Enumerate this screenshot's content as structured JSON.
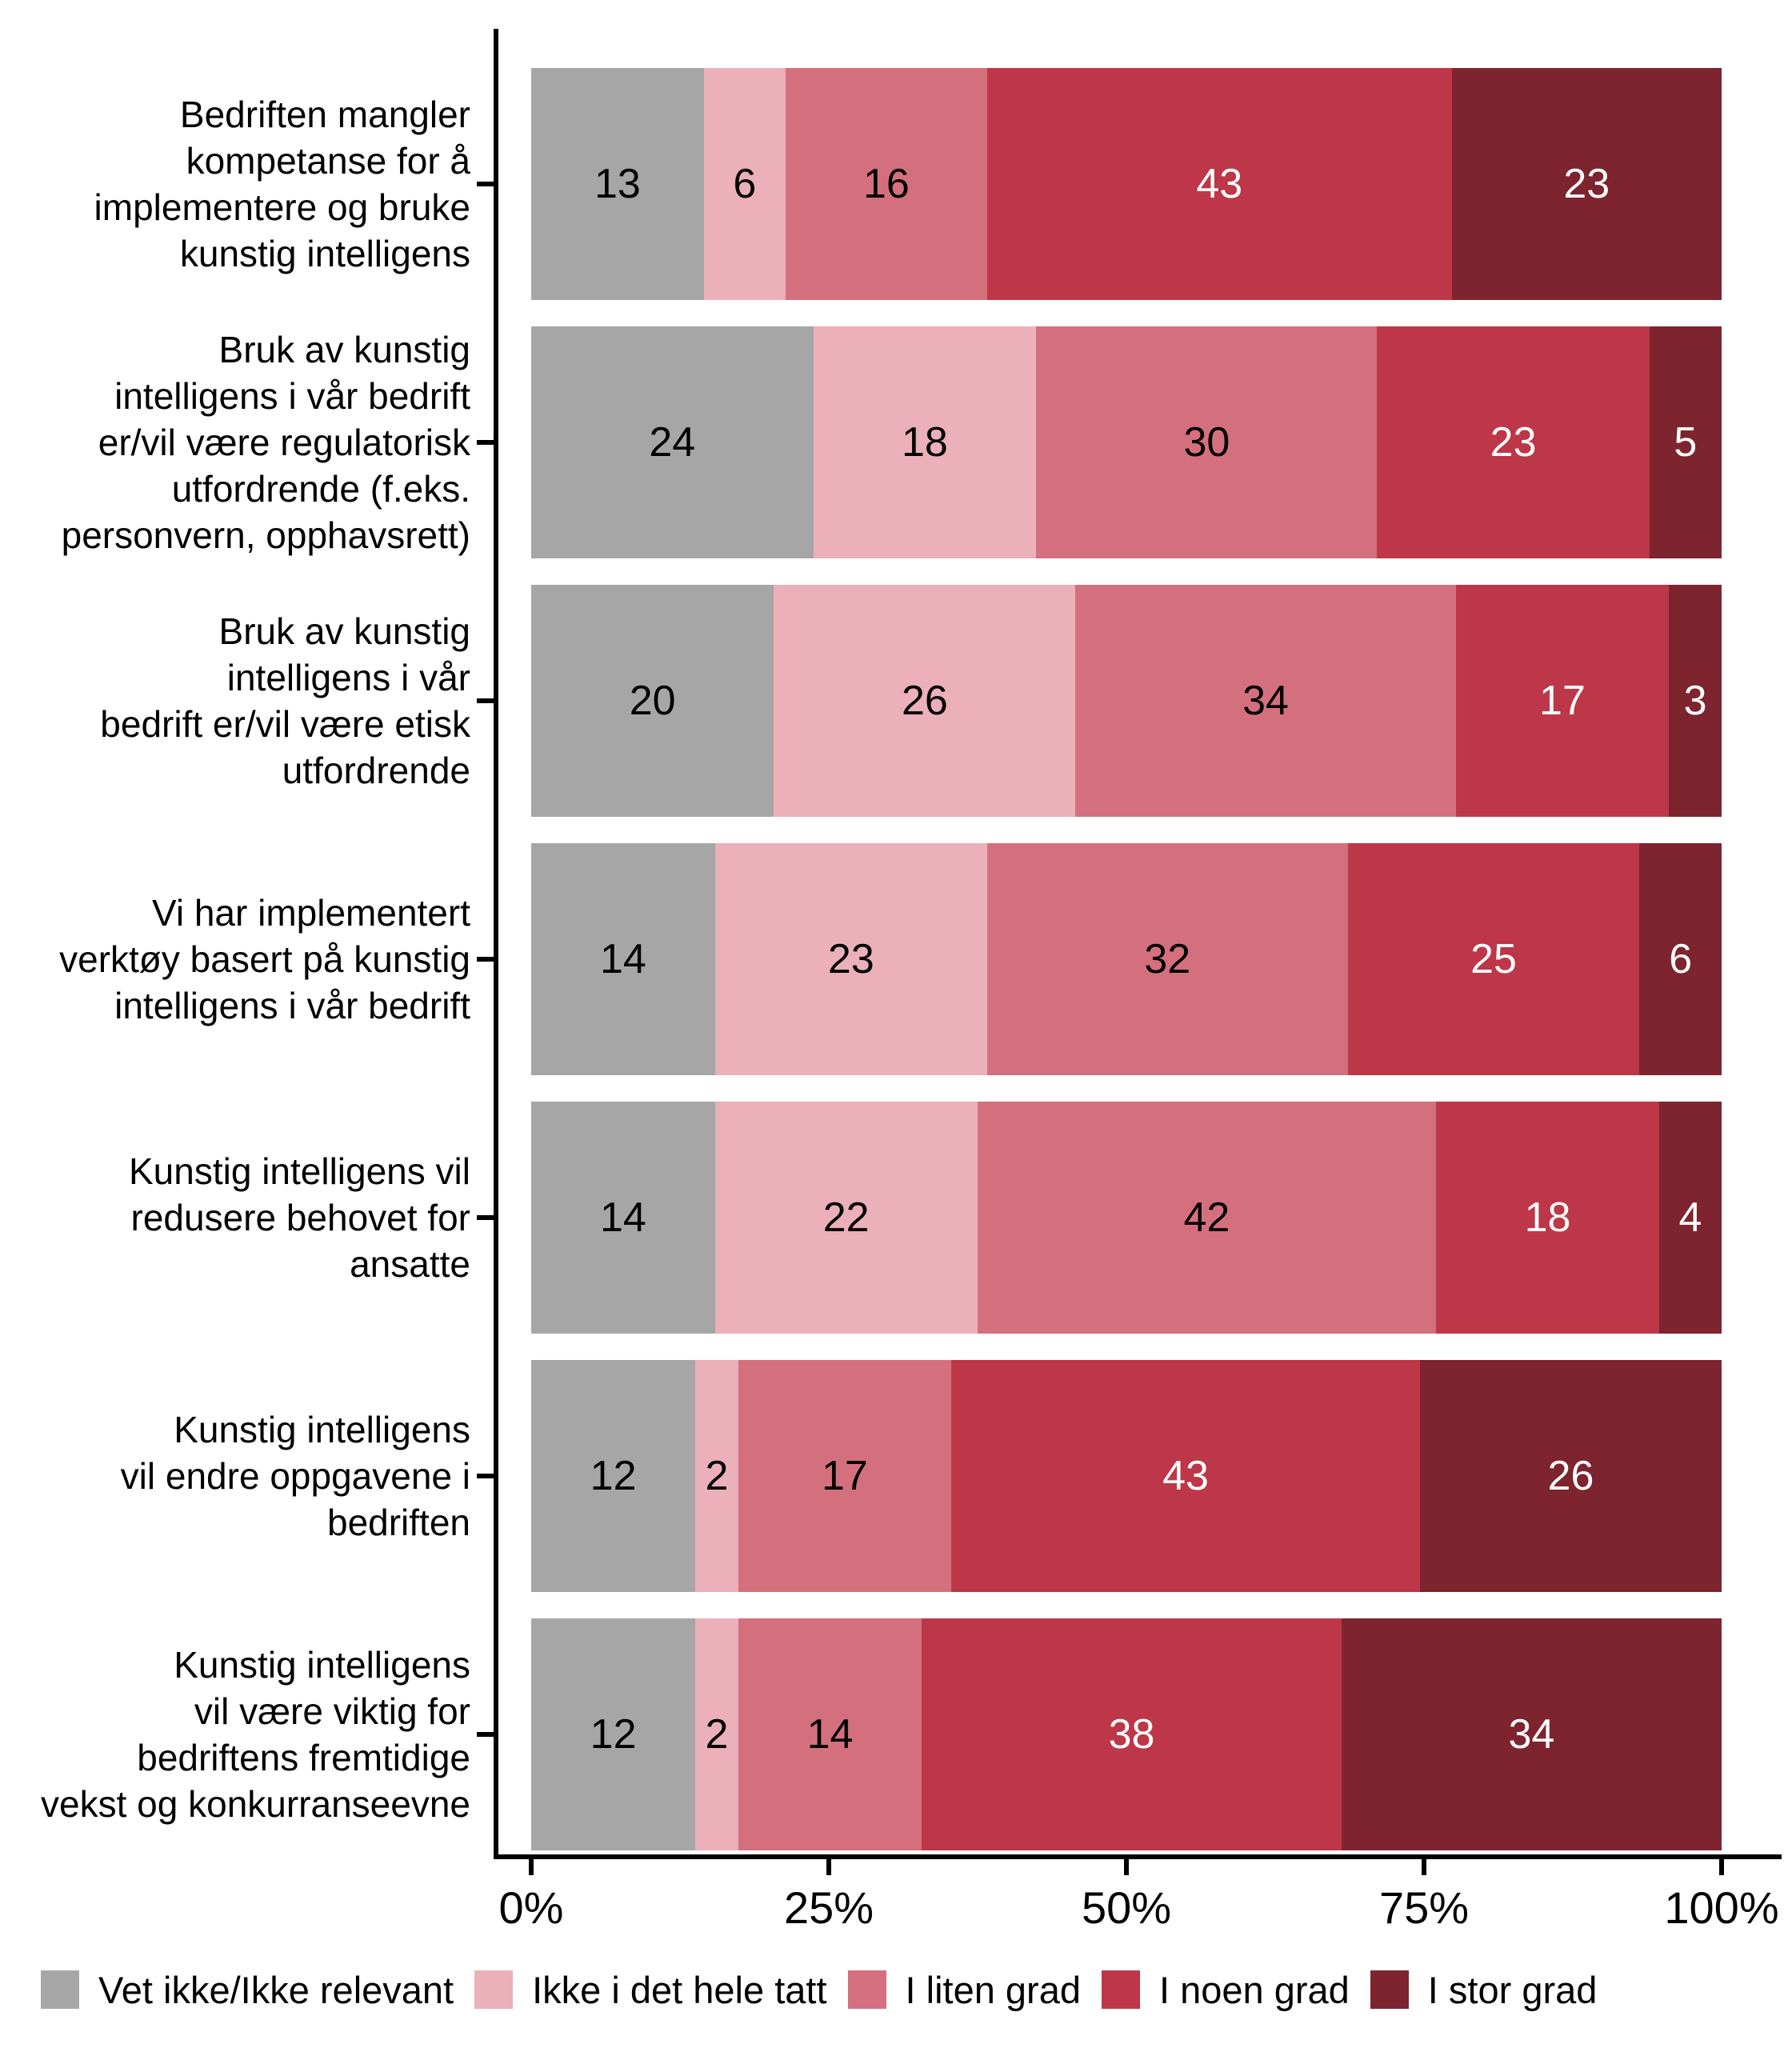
{
  "chart_data": {
    "type": "bar",
    "orientation": "horizontal",
    "stacked": true,
    "title": "",
    "xlabel": "",
    "ylabel": "",
    "grid": false,
    "legend_position": "bottom",
    "axis_color": "#000000",
    "background_color": "#ffffff",
    "x_range": [
      0,
      100
    ],
    "x_ticks": [
      "0%",
      "25%",
      "50%",
      "75%",
      "100%"
    ],
    "categories": [
      "Bedriften mangler\nkompetanse for å\nimplementere og bruke\nkunstig intelligens",
      "Bruk av kunstig\nintelligens i vår bedrift\ner/vil være regulatorisk\nutfordrende (f.eks.\npersonvern, opphavsrett)",
      "Bruk av kunstig\nintelligens i vår\nbedrift er/vil være etisk\nutfordrende",
      "Vi har implementert\nverktøy basert på kunstig\nintelligens i vår bedrift",
      "Kunstig intelligens vil\nredusere behovet for\nansatte",
      "Kunstig intelligens\nvil endre oppgavene i\nbedriften",
      "Kunstig intelligens\nvil være viktig for\nbedriftens fremtidige\nvekst og konkurranseevne"
    ],
    "series": [
      {
        "name": "Vet ikke/Ikke relevant",
        "color": "#a6a6a6",
        "text_color": "#000000",
        "values": [
          13,
          24,
          20,
          14,
          14,
          12,
          12
        ]
      },
      {
        "name": "Ikke i det hele tatt",
        "color": "#ebb0b9",
        "text_color": "#000000",
        "values": [
          6,
          18,
          26,
          23,
          22,
          2,
          2
        ]
      },
      {
        "name": "I liten grad",
        "color": "#d4707e",
        "text_color": "#000000",
        "values": [
          16,
          30,
          34,
          32,
          42,
          17,
          14
        ]
      },
      {
        "name": "I noen grad",
        "color": "#bd3748",
        "text_color": "#ffffff",
        "values": [
          43,
          23,
          17,
          25,
          18,
          43,
          38
        ]
      },
      {
        "name": "I stor grad",
        "color": "#7d242e",
        "text_color": "#ffffff",
        "values": [
          23,
          5,
          3,
          6,
          4,
          26,
          34
        ]
      }
    ]
  }
}
